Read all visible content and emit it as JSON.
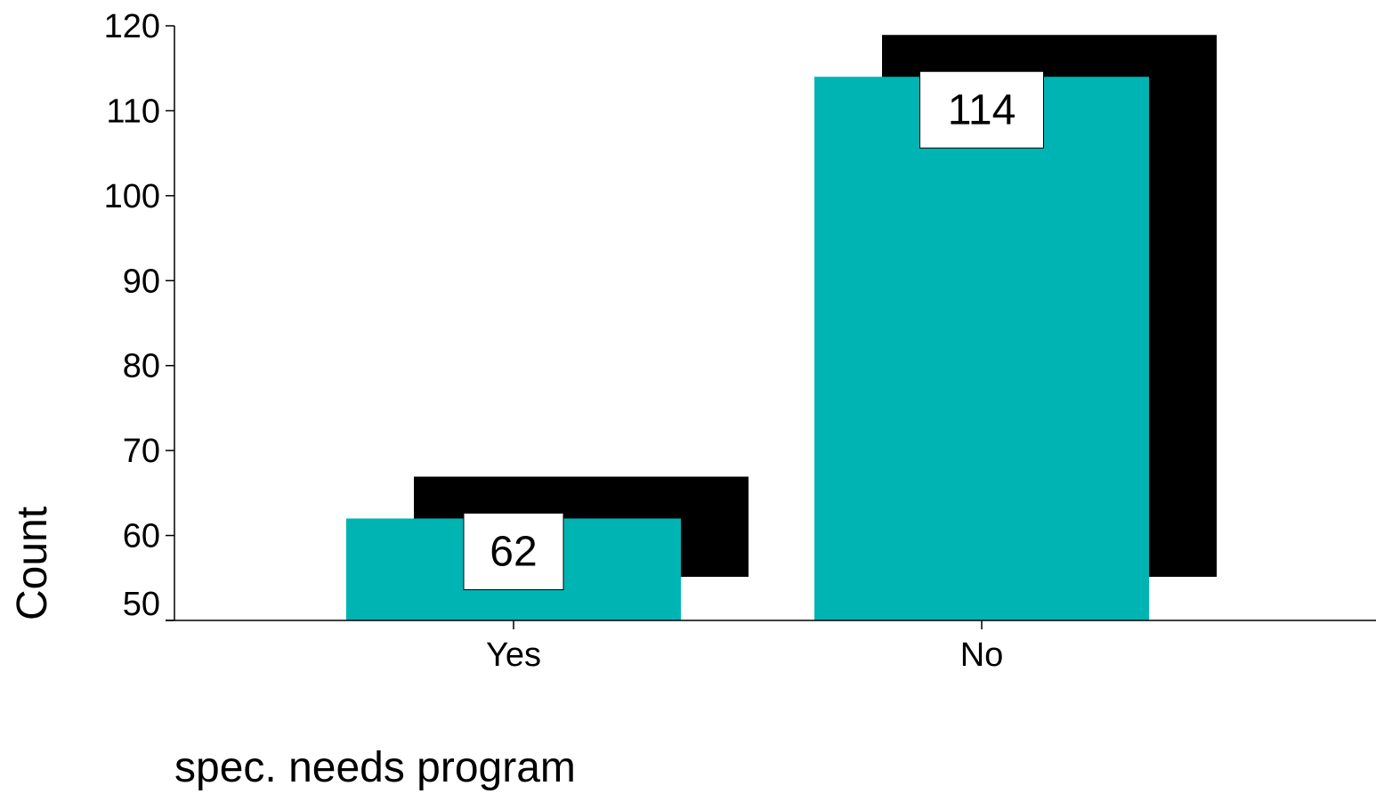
{
  "chart_data": {
    "type": "bar",
    "title": "",
    "xlabel": "spec. needs program",
    "ylabel": "Count",
    "categories": [
      "Yes",
      "No"
    ],
    "values": [
      62,
      114
    ],
    "ylim": [
      50,
      120
    ],
    "yticks": [
      50,
      60,
      70,
      80,
      90,
      100,
      110,
      120
    ],
    "grid": false,
    "legend": "none",
    "bar_color": "#00b4b4",
    "shadow_color": "#000000",
    "label_box_color": "#ffffff"
  }
}
